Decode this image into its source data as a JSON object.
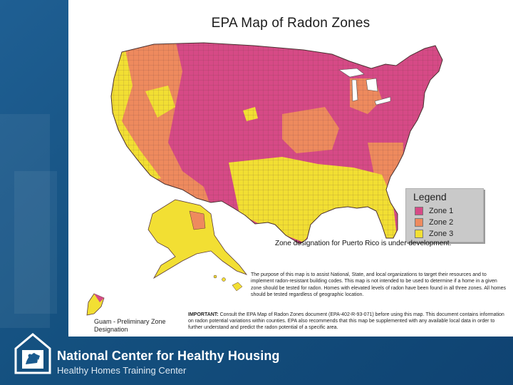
{
  "slide": {
    "map_title": "EPA Map of Radon Zones",
    "legend": {
      "title": "Legend",
      "items": [
        {
          "label": "Zone 1",
          "color": "#d64a86"
        },
        {
          "label": "Zone 2",
          "color": "#ee8a5e"
        },
        {
          "label": "Zone 3",
          "color": "#f2df33"
        }
      ]
    },
    "puerto_rico_note": "Zone designation for Puerto Rico is under development.",
    "purpose_text": "The purpose of this map is to assist National, State, and local organizations to target their resources and to implement radon-resistant building codes. This map is not intended to be used to determine if a home in a given zone should be tested for radon. Homes with elevated levels of radon have been found in all three zones. All homes should be tested regardless of geographic location.",
    "important_label": "IMPORTANT:",
    "important_text": "Consult the EPA Map of Radon Zones document (EPA-402-R-93-071) before using this map. This document contains information on radon potential variations within counties. EPA also recommends that this map be supplemented with any available local data in order to further understand and predict the radon potential of a specific area.",
    "guam_label": "Guam - Preliminary Zone Designation"
  },
  "footer": {
    "org_name": "National Center for Healthy Housing",
    "sub_name": "Healthy Homes Training Center"
  },
  "colors": {
    "background": "#1a5a8e",
    "zone1": "#d64a86",
    "zone2": "#ee8a5e",
    "zone3": "#f2df33"
  }
}
